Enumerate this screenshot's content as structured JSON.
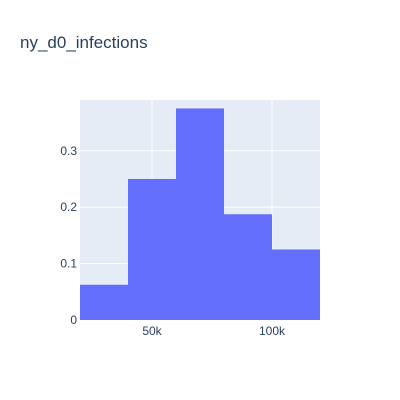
{
  "chart_data": {
    "type": "bar",
    "subtype": "histogram",
    "title": "ny_d0_infections",
    "xlabel": "",
    "ylabel": "",
    "bins": [
      {
        "x0": 20000,
        "x1": 40000,
        "value": 0.0625
      },
      {
        "x0": 40000,
        "x1": 60000,
        "value": 0.25
      },
      {
        "x0": 60000,
        "x1": 80000,
        "value": 0.375
      },
      {
        "x0": 80000,
        "x1": 100000,
        "value": 0.1875
      },
      {
        "x0": 100000,
        "x1": 120000,
        "value": 0.125
      }
    ],
    "xlim": [
      20000,
      120000
    ],
    "ylim": [
      0,
      0.39
    ],
    "x_ticks": [
      {
        "value": 50000,
        "label": "50k"
      },
      {
        "value": 100000,
        "label": "100k"
      }
    ],
    "y_ticks": [
      {
        "value": 0,
        "label": "0"
      },
      {
        "value": 0.1,
        "label": "0.1"
      },
      {
        "value": 0.2,
        "label": "0.2"
      },
      {
        "value": 0.3,
        "label": "0.3"
      }
    ],
    "grid": true,
    "colors": {
      "bar": "#636efa",
      "plot_background": "#e5ecf6",
      "grid": "#ffffff",
      "text": "#2a3f5f"
    }
  }
}
